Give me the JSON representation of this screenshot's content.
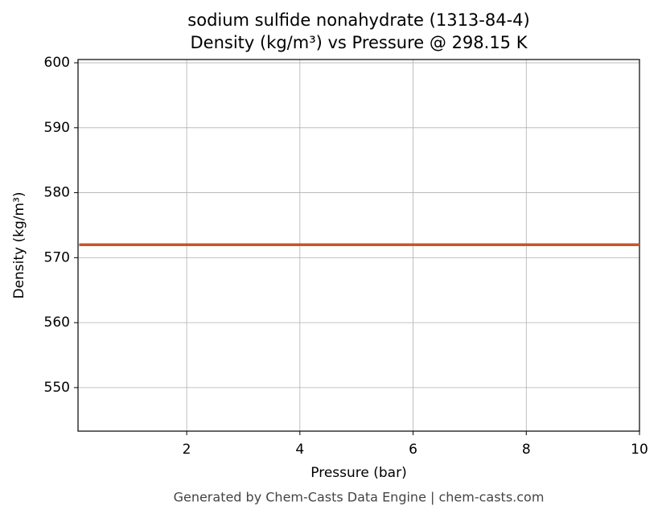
{
  "chart_data": {
    "type": "line",
    "title": "sodium sulfide nonahydrate (1313-84-4)",
    "subtitle": "Density (kg/m³) vs Pressure @ 298.15 K",
    "xlabel": "Pressure (bar)",
    "ylabel": "Density (kg/m³)",
    "footer": "Generated by Chem-Casts Data Engine | chem-casts.com",
    "x": [
      0.1,
      10
    ],
    "series": [
      {
        "name": "Density",
        "color": "#c8542a",
        "values": [
          572,
          572
        ]
      }
    ],
    "xlim": [
      0.08,
      10
    ],
    "xticks": [
      2,
      4,
      6,
      8,
      10
    ],
    "ylim": [
      543.3,
      600.5
    ],
    "yticks": [
      550,
      560,
      570,
      580,
      590,
      600
    ],
    "grid": true
  }
}
